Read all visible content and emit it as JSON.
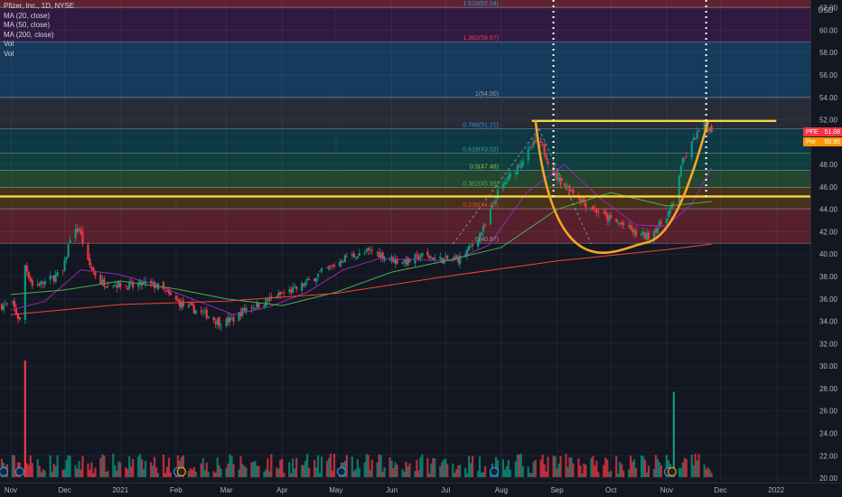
{
  "header": {
    "symbol_line": "Pfizer, Inc., 1D, NYSE",
    "currency": "USD",
    "indicators": [
      "MA (20, close)",
      "MA (50, close)",
      "MA (200, close)",
      "Vol",
      "Vol"
    ]
  },
  "price_tags": [
    {
      "symbol": "PFE",
      "value": "51.08",
      "color": "#f23645"
    },
    {
      "symbol": "Pre",
      "value": "50.95",
      "color": "#ff9800"
    }
  ],
  "chart_data": {
    "type": "candlestick",
    "title": "Pfizer, Inc., 1D, NYSE",
    "ylabel": "USD",
    "ylim": [
      19.6,
      62.7
    ],
    "y_ticks": [
      20.0,
      22.0,
      24.0,
      26.0,
      28.0,
      30.0,
      32.0,
      34.0,
      36.0,
      38.0,
      40.0,
      42.0,
      44.0,
      46.0,
      48.0,
      50.0,
      52.0,
      54.0,
      56.0,
      58.0,
      60.0,
      62.0
    ],
    "x_ticks": [
      "Nov",
      "Dec",
      "2021",
      "Feb",
      "Mar",
      "Apr",
      "May",
      "Jun",
      "Jul",
      "Aug",
      "Sep",
      "Oct",
      "Nov",
      "Dec",
      "2022"
    ],
    "x_tick_dates": [
      "2020-11-01",
      "2020-12-01",
      "2021-01-01",
      "2021-02-01",
      "2021-03-01",
      "2021-04-01",
      "2021-05-01",
      "2021-06-01",
      "2021-07-01",
      "2021-08-01",
      "2021-09-01",
      "2021-10-01",
      "2021-11-01",
      "2021-12-01",
      "2022-01-01"
    ],
    "x_range": [
      "2020-10-26",
      "2022-01-20"
    ],
    "price_path": [
      [
        "2020-10-27",
        35.4
      ],
      [
        "2020-11-02",
        35.5
      ],
      [
        "2020-11-06",
        34.0
      ],
      [
        "2020-11-09",
        39.0
      ],
      [
        "2020-11-13",
        37.2
      ],
      [
        "2020-11-20",
        37.5
      ],
      [
        "2020-11-30",
        38.4
      ],
      [
        "2020-12-04",
        41.5
      ],
      [
        "2020-12-09",
        42.3
      ],
      [
        "2020-12-14",
        39.2
      ],
      [
        "2020-12-21",
        37.5
      ],
      [
        "2020-12-31",
        37.3
      ],
      [
        "2021-01-08",
        37.1
      ],
      [
        "2021-01-15",
        37.4
      ],
      [
        "2021-01-22",
        37.1
      ],
      [
        "2021-01-29",
        36.2
      ],
      [
        "2021-02-05",
        35.4
      ],
      [
        "2021-02-12",
        35.0
      ],
      [
        "2021-02-19",
        34.5
      ],
      [
        "2021-02-26",
        33.8
      ],
      [
        "2021-03-05",
        34.2
      ],
      [
        "2021-03-12",
        35.2
      ],
      [
        "2021-03-19",
        35.5
      ],
      [
        "2021-03-26",
        36.0
      ],
      [
        "2021-04-02",
        36.5
      ],
      [
        "2021-04-09",
        36.9
      ],
      [
        "2021-04-16",
        37.6
      ],
      [
        "2021-04-23",
        38.4
      ],
      [
        "2021-04-30",
        39.0
      ],
      [
        "2021-05-07",
        39.8
      ],
      [
        "2021-05-14",
        39.9
      ],
      [
        "2021-05-21",
        40.3
      ],
      [
        "2021-05-28",
        39.8
      ],
      [
        "2021-06-04",
        39.4
      ],
      [
        "2021-06-11",
        39.4
      ],
      [
        "2021-06-18",
        39.9
      ],
      [
        "2021-06-25",
        39.6
      ],
      [
        "2021-07-02",
        39.5
      ],
      [
        "2021-07-09",
        39.6
      ],
      [
        "2021-07-16",
        40.8
      ],
      [
        "2021-07-23",
        42.5
      ],
      [
        "2021-07-30",
        45.5
      ],
      [
        "2021-08-06",
        47.0
      ],
      [
        "2021-08-13",
        48.5
      ],
      [
        "2021-08-20",
        50.0
      ],
      [
        "2021-08-24",
        49.5
      ],
      [
        "2021-08-30",
        47.2
      ],
      [
        "2021-09-03",
        46.5
      ],
      [
        "2021-09-10",
        45.6
      ],
      [
        "2021-09-17",
        44.5
      ],
      [
        "2021-09-24",
        43.8
      ],
      [
        "2021-10-01",
        43.0
      ],
      [
        "2021-10-08",
        42.6
      ],
      [
        "2021-10-15",
        41.8
      ],
      [
        "2021-10-22",
        41.6
      ],
      [
        "2021-10-29",
        42.8
      ],
      [
        "2021-11-05",
        44.5
      ],
      [
        "2021-11-09",
        48.0
      ],
      [
        "2021-11-12",
        48.8
      ],
      [
        "2021-11-17",
        50.5
      ],
      [
        "2021-11-22",
        51.5
      ],
      [
        "2021-11-26",
        51.1
      ]
    ],
    "moving_averages": [
      {
        "name": "MA (20, close)",
        "color": "#9c27b0",
        "points": [
          [
            "2020-11-01",
            35.0
          ],
          [
            "2020-11-20",
            35.8
          ],
          [
            "2020-12-10",
            38.6
          ],
          [
            "2020-12-31",
            38.2
          ],
          [
            "2021-01-20",
            37.3
          ],
          [
            "2021-02-10",
            36.0
          ],
          [
            "2021-03-05",
            34.6
          ],
          [
            "2021-03-25",
            35.3
          ],
          [
            "2021-04-15",
            36.6
          ],
          [
            "2021-05-05",
            38.6
          ],
          [
            "2021-05-25",
            39.6
          ],
          [
            "2021-06-15",
            39.5
          ],
          [
            "2021-07-05",
            39.4
          ],
          [
            "2021-07-25",
            40.8
          ],
          [
            "2021-08-15",
            45.5
          ],
          [
            "2021-09-05",
            48.0
          ],
          [
            "2021-09-25",
            45.0
          ],
          [
            "2021-10-15",
            42.6
          ],
          [
            "2021-11-01",
            42.5
          ],
          [
            "2021-11-15",
            44.5
          ],
          [
            "2021-11-26",
            47.7
          ]
        ]
      },
      {
        "name": "MA (50, close)",
        "color": "#4caf50",
        "points": [
          [
            "2020-11-01",
            36.4
          ],
          [
            "2020-12-01",
            36.8
          ],
          [
            "2021-01-01",
            37.6
          ],
          [
            "2021-02-01",
            36.9
          ],
          [
            "2021-03-01",
            36.0
          ],
          [
            "2021-04-01",
            35.4
          ],
          [
            "2021-05-01",
            36.6
          ],
          [
            "2021-06-01",
            38.4
          ],
          [
            "2021-07-01",
            39.4
          ],
          [
            "2021-08-01",
            40.6
          ],
          [
            "2021-09-01",
            44.0
          ],
          [
            "2021-10-01",
            45.5
          ],
          [
            "2021-11-01",
            44.3
          ],
          [
            "2021-11-26",
            44.7
          ]
        ]
      },
      {
        "name": "MA (200, close)",
        "color": "#f44336",
        "points": [
          [
            "2020-11-01",
            34.6
          ],
          [
            "2021-01-01",
            35.5
          ],
          [
            "2021-03-01",
            35.8
          ],
          [
            "2021-05-01",
            36.5
          ],
          [
            "2021-07-01",
            38.0
          ],
          [
            "2021-09-01",
            39.4
          ],
          [
            "2021-11-01",
            40.4
          ],
          [
            "2021-11-26",
            40.9
          ]
        ]
      }
    ],
    "volume_spikes": [
      {
        "date": "2020-11-09",
        "value": 30.5,
        "color": "#f23645"
      },
      {
        "date": "2021-11-05",
        "value": 27.7,
        "color": "#089981"
      }
    ],
    "fibonacci_levels": [
      {
        "label": "0(40.97)",
        "value": 40.97
      },
      {
        "label": "0.236(44.05)",
        "value": 44.05
      },
      {
        "label": "0.382(45.95)",
        "value": 45.95
      },
      {
        "label": "0.5(47.48)",
        "value": 47.48
      },
      {
        "label": "0.618(49.02)",
        "value": 49.02
      },
      {
        "label": "0.786(51.21)",
        "value": 51.21
      },
      {
        "label": "1(54.00)",
        "value": 54.0
      },
      {
        "label": "1.382(58.97)",
        "value": 58.97
      },
      {
        "label": "1.618(62.04)",
        "value": 62.04
      }
    ],
    "horizontal_lines": [
      {
        "value": 51.9,
        "date_start": "2021-08-18",
        "date_end": "2022-01-01",
        "color": "#f5d547"
      },
      {
        "value": 45.15,
        "date_start": "2020-10-26",
        "date_end": "2022-01-20",
        "color": "#f5d547"
      }
    ],
    "vertical_markers": [
      "2021-08-30",
      "2021-11-23"
    ],
    "cup_pattern": {
      "start": [
        "2021-08-20",
        52.0
      ],
      "bottom": [
        "2021-10-20",
        41.0
      ],
      "end": [
        "2021-11-24",
        51.8
      ],
      "color": "#f5a623"
    }
  }
}
